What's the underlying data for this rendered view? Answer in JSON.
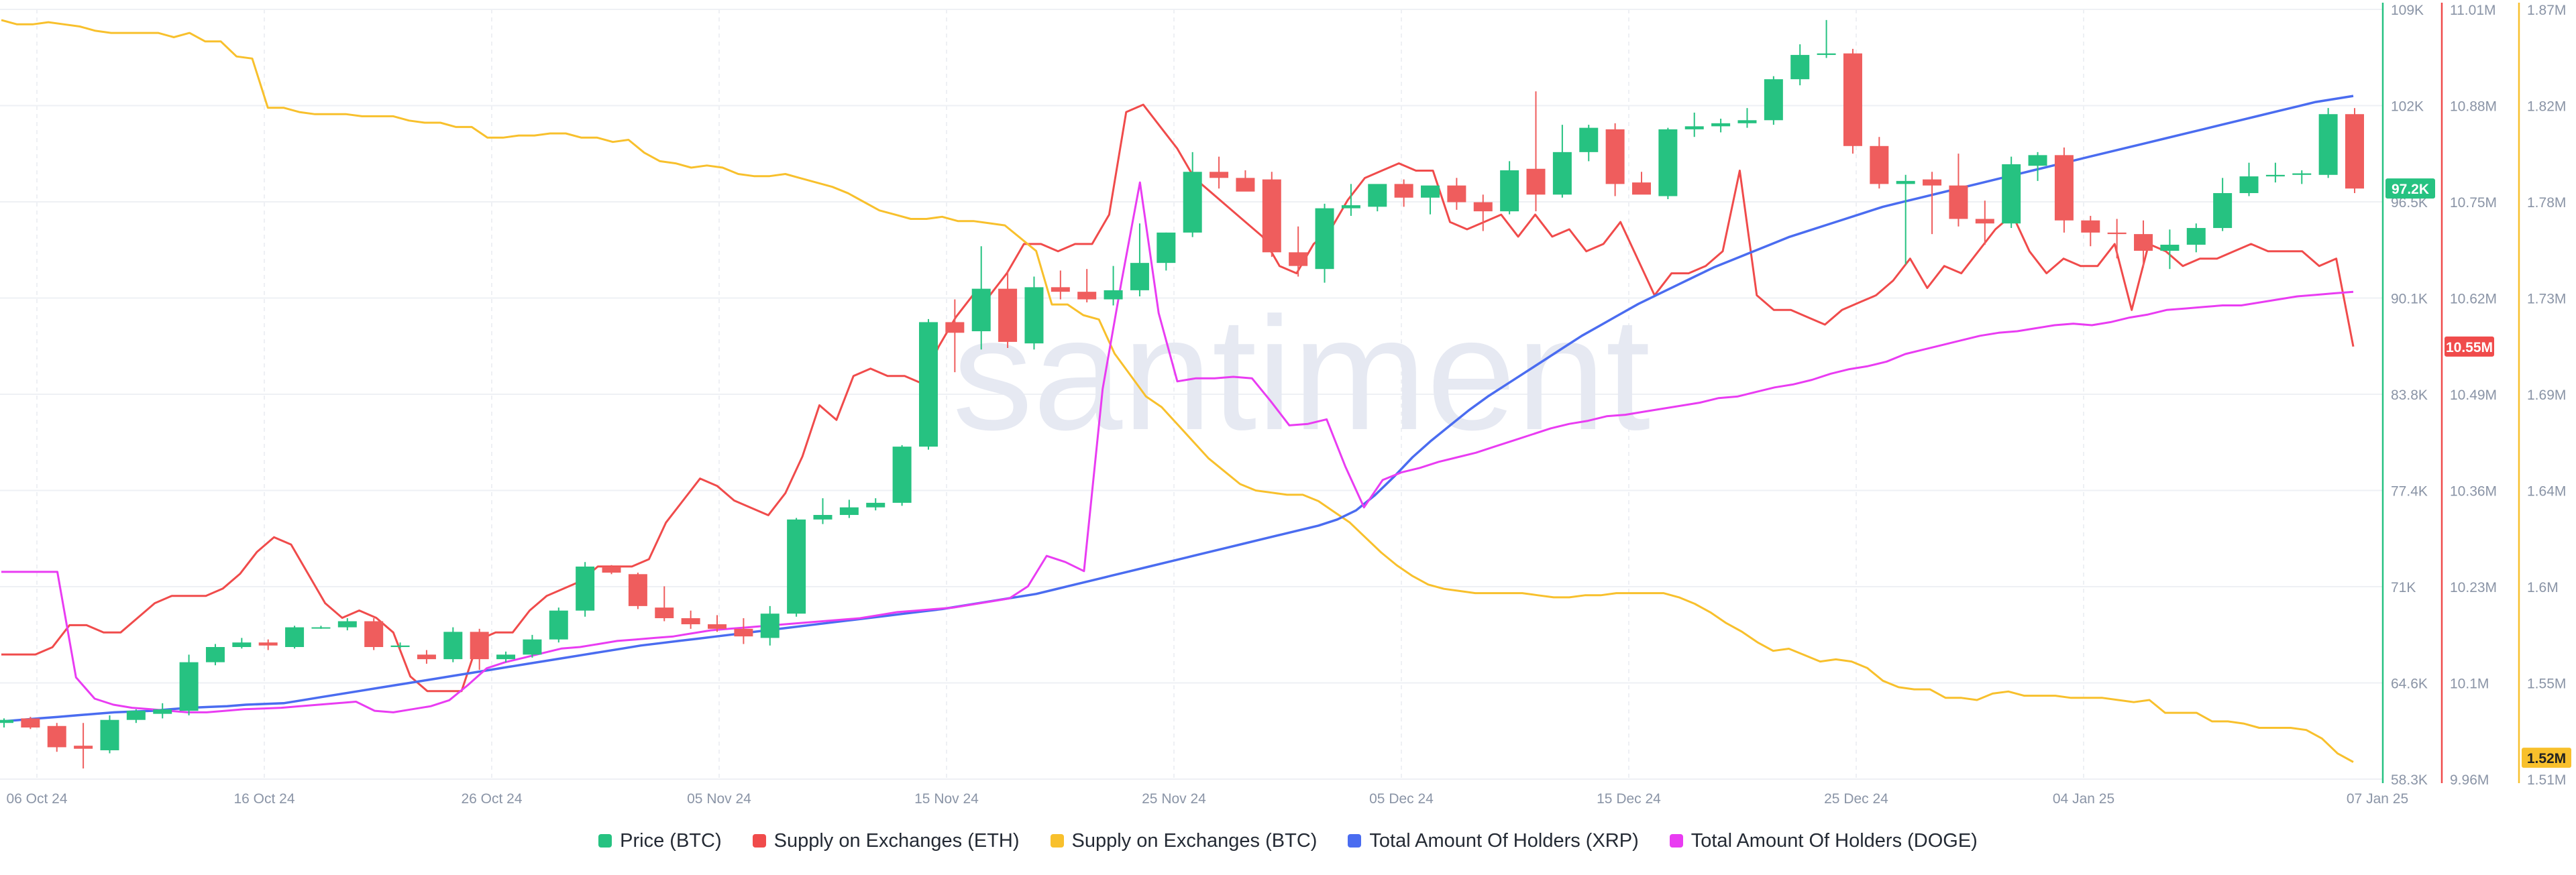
{
  "watermark": "santiment",
  "colors": {
    "up": "#26c281",
    "down": "#ef5d5d",
    "eth_supply": "#f04b4b",
    "btc_supply": "#f8c02c",
    "xrp_holders": "#4a6cf0",
    "doge_holders": "#e93cf2",
    "grid": "#eef0f4",
    "tick_text": "#8a94a6"
  },
  "chart_data": {
    "type": "line",
    "title": "",
    "x_ticks": [
      "06 Oct 24",
      "16 Oct 24",
      "26 Oct 24",
      "05 Nov 24",
      "15 Nov 24",
      "25 Nov 24",
      "05 Dec 24",
      "15 Dec 24",
      "25 Dec 24",
      "04 Jan 25",
      "07 Jan 25"
    ],
    "axes": [
      {
        "id": "btc_price",
        "ticks": [
          "109K",
          "102K",
          "96.5K",
          "90.1K",
          "83.8K",
          "77.4K",
          "71K",
          "64.6K",
          "58.3K"
        ],
        "ylim": [
          58300,
          109000
        ],
        "current_label": "97.2K",
        "color": "#26c281"
      },
      {
        "id": "eth_supply",
        "ticks": [
          "11.01M",
          "10.88M",
          "10.75M",
          "10.62M",
          "10.49M",
          "10.36M",
          "10.23M",
          "10.1M",
          "9.96M"
        ],
        "ylim": [
          9.96,
          11.01
        ],
        "current_label": "10.55M",
        "color": "#f04b4b"
      },
      {
        "id": "btc_supply",
        "ticks": [
          "1.87M",
          "1.82M",
          "1.78M",
          "1.73M",
          "1.69M",
          "1.64M",
          "1.6M",
          "1.55M",
          "1.51M"
        ],
        "ylim": [
          1.51,
          1.87
        ],
        "current_label": "1.52M",
        "color": "#f8c02c"
      }
    ],
    "candles": [
      [
        62000,
        62300,
        61700,
        62200
      ],
      [
        62300,
        62400,
        61600,
        61700
      ],
      [
        61800,
        62000,
        60100,
        60400
      ],
      [
        60500,
        62000,
        59000,
        60300
      ],
      [
        60200,
        62500,
        60000,
        62200
      ],
      [
        62200,
        62900,
        62000,
        62800
      ],
      [
        62600,
        63300,
        62300,
        62900
      ],
      [
        62800,
        66500,
        62500,
        66000
      ],
      [
        66000,
        67200,
        65800,
        67000
      ],
      [
        67000,
        67600,
        66900,
        67300
      ],
      [
        67300,
        67500,
        66800,
        67100
      ],
      [
        67000,
        68400,
        66900,
        68300
      ],
      [
        68300,
        68400,
        68200,
        68300
      ],
      [
        68300,
        68900,
        68100,
        68700
      ],
      [
        68700,
        68900,
        66800,
        67000
      ],
      [
        67000,
        67300,
        66900,
        67100
      ],
      [
        66500,
        66800,
        65900,
        66200
      ],
      [
        66200,
        68300,
        66000,
        68000
      ],
      [
        68000,
        68200,
        65500,
        66200
      ],
      [
        66200,
        66700,
        66000,
        66500
      ],
      [
        66500,
        67800,
        66300,
        67500
      ],
      [
        67500,
        69600,
        67300,
        69400
      ],
      [
        69400,
        72600,
        69000,
        72300
      ],
      [
        72300,
        72400,
        71800,
        71900
      ],
      [
        71800,
        71900,
        69500,
        69700
      ],
      [
        69600,
        71000,
        68700,
        68900
      ],
      [
        68900,
        69400,
        68200,
        68500
      ],
      [
        68500,
        69100,
        68000,
        68200
      ],
      [
        68200,
        68900,
        67200,
        67700
      ],
      [
        67600,
        69700,
        67100,
        69200
      ],
      [
        69200,
        75500,
        69000,
        75400
      ],
      [
        75400,
        76800,
        75100,
        75700
      ],
      [
        75700,
        76700,
        75500,
        76200
      ],
      [
        76200,
        76800,
        76000,
        76500
      ],
      [
        76500,
        80300,
        76300,
        80200
      ],
      [
        80200,
        88600,
        80000,
        88400
      ],
      [
        88400,
        89900,
        85100,
        87700
      ],
      [
        87800,
        93400,
        86600,
        90600
      ],
      [
        90600,
        91800,
        86700,
        87100
      ],
      [
        87000,
        91400,
        86600,
        90700
      ],
      [
        90700,
        91800,
        89900,
        90400
      ],
      [
        90400,
        91900,
        89700,
        89900
      ],
      [
        89900,
        92100,
        89500,
        90500
      ],
      [
        90500,
        94900,
        90100,
        92300
      ],
      [
        92300,
        94300,
        91800,
        94300
      ],
      [
        94300,
        99600,
        94000,
        98300
      ],
      [
        98300,
        99300,
        97200,
        97900
      ],
      [
        97900,
        98400,
        97100,
        97000
      ],
      [
        97800,
        98300,
        92700,
        93000
      ],
      [
        93000,
        94700,
        91400,
        92100
      ],
      [
        91900,
        96200,
        91000,
        95900
      ],
      [
        95900,
        97500,
        95400,
        96100
      ],
      [
        96000,
        97400,
        95700,
        97500
      ],
      [
        97500,
        97800,
        96000,
        96600
      ],
      [
        96600,
        97300,
        95500,
        97400
      ],
      [
        97400,
        97900,
        95800,
        96300
      ],
      [
        96300,
        96800,
        94400,
        95700
      ],
      [
        95700,
        99000,
        95500,
        98400
      ],
      [
        98500,
        103600,
        95700,
        96800
      ],
      [
        96800,
        101400,
        96600,
        99600
      ],
      [
        99600,
        101400,
        99000,
        101200
      ],
      [
        101100,
        101500,
        96700,
        97500
      ],
      [
        97600,
        98300,
        96900,
        96800
      ],
      [
        96700,
        101200,
        96500,
        101100
      ],
      [
        101100,
        102200,
        100600,
        101300
      ],
      [
        101300,
        101800,
        100900,
        101500
      ],
      [
        101500,
        102500,
        101200,
        101700
      ],
      [
        101700,
        104600,
        101400,
        104400
      ],
      [
        104400,
        106700,
        104000,
        106000
      ],
      [
        106000,
        108300,
        105800,
        106100
      ],
      [
        106100,
        106400,
        99500,
        100000
      ],
      [
        100000,
        100600,
        97200,
        97500
      ],
      [
        97500,
        98100,
        92200,
        97700
      ],
      [
        97800,
        98300,
        94200,
        97400
      ],
      [
        97400,
        99500,
        94700,
        95200
      ],
      [
        95200,
        96400,
        93500,
        94900
      ],
      [
        94900,
        99300,
        94600,
        98800
      ],
      [
        98700,
        99600,
        97700,
        99400
      ],
      [
        99400,
        99900,
        94300,
        95100
      ],
      [
        95100,
        95400,
        93400,
        94300
      ],
      [
        94300,
        95200,
        92600,
        94200
      ],
      [
        94200,
        95100,
        92000,
        93100
      ],
      [
        93100,
        94500,
        91900,
        93500
      ],
      [
        93500,
        94900,
        93000,
        94600
      ],
      [
        94600,
        97900,
        94400,
        96900
      ],
      [
        96900,
        98900,
        96700,
        98000
      ],
      [
        98000,
        98900,
        97600,
        98100
      ],
      [
        98100,
        98400,
        97500,
        98200
      ],
      [
        98100,
        102500,
        97900,
        102100
      ],
      [
        102100,
        102500,
        96900,
        97200
      ]
    ],
    "series": [
      {
        "name": "Price (BTC)",
        "axis": "btc_price"
      },
      {
        "name": "Supply on Exchanges (ETH)",
        "axis": "eth_supply",
        "values": [
          10.13,
          10.13,
          10.13,
          10.14,
          10.17,
          10.17,
          10.16,
          10.16,
          10.18,
          10.2,
          10.21,
          10.21,
          10.21,
          10.22,
          10.24,
          10.27,
          10.29,
          10.28,
          10.24,
          10.2,
          10.18,
          10.19,
          10.18,
          10.16,
          10.1,
          10.08,
          10.08,
          10.08,
          10.15,
          10.16,
          10.16,
          10.19,
          10.21,
          10.22,
          10.23,
          10.25,
          10.25,
          10.25,
          10.26,
          10.31,
          10.34,
          10.37,
          10.36,
          10.34,
          10.33,
          10.32,
          10.35,
          10.4,
          10.47,
          10.45,
          10.51,
          10.52,
          10.51,
          10.51,
          10.5,
          10.55,
          10.59,
          10.62,
          10.62,
          10.65,
          10.69,
          10.69,
          10.68,
          10.69,
          10.69,
          10.73,
          10.87,
          10.88,
          10.85,
          10.82,
          10.78,
          10.76,
          10.74,
          10.72,
          10.7,
          10.66,
          10.65,
          10.69,
          10.71,
          10.75,
          10.78,
          10.79,
          10.8,
          10.79,
          10.79,
          10.72,
          10.71,
          10.72,
          10.73,
          10.7,
          10.73,
          10.7,
          10.71,
          10.68,
          10.69,
          10.72,
          10.67,
          10.62,
          10.65,
          10.65,
          10.66,
          10.68,
          10.79,
          10.62,
          10.6,
          10.6,
          10.59,
          10.58,
          10.6,
          10.61,
          10.62,
          10.64,
          10.67,
          10.63,
          10.66,
          10.65,
          10.68,
          10.71,
          10.73,
          10.68,
          10.65,
          10.67,
          10.66,
          10.66,
          10.69,
          10.6,
          10.69,
          10.68,
          10.66,
          10.67,
          10.67,
          10.68,
          10.69,
          10.68,
          10.68,
          10.68,
          10.66,
          10.67,
          10.55
        ]
      },
      {
        "name": "Supply on Exchanges (BTC)",
        "axis": "btc_supply",
        "values": [
          1.865,
          1.863,
          1.863,
          1.864,
          1.863,
          1.862,
          1.86,
          1.859,
          1.859,
          1.859,
          1.859,
          1.857,
          1.859,
          1.855,
          1.855,
          1.848,
          1.847,
          1.824,
          1.824,
          1.822,
          1.821,
          1.821,
          1.821,
          1.82,
          1.82,
          1.82,
          1.818,
          1.817,
          1.817,
          1.815,
          1.815,
          1.81,
          1.81,
          1.811,
          1.811,
          1.812,
          1.812,
          1.81,
          1.81,
          1.808,
          1.809,
          1.803,
          1.799,
          1.798,
          1.796,
          1.797,
          1.796,
          1.793,
          1.792,
          1.792,
          1.793,
          1.791,
          1.789,
          1.787,
          1.784,
          1.78,
          1.776,
          1.774,
          1.772,
          1.772,
          1.773,
          1.771,
          1.771,
          1.77,
          1.769,
          1.763,
          1.757,
          1.732,
          1.732,
          1.727,
          1.725,
          1.709,
          1.699,
          1.689,
          1.684,
          1.676,
          1.668,
          1.66,
          1.654,
          1.648,
          1.645,
          1.644,
          1.643,
          1.643,
          1.64,
          1.635,
          1.63,
          1.623,
          1.616,
          1.61,
          1.605,
          1.601,
          1.599,
          1.598,
          1.597,
          1.597,
          1.597,
          1.597,
          1.596,
          1.595,
          1.595,
          1.596,
          1.596,
          1.597,
          1.597,
          1.597,
          1.597,
          1.595,
          1.592,
          1.588,
          1.583,
          1.579,
          1.574,
          1.57,
          1.571,
          1.568,
          1.565,
          1.566,
          1.565,
          1.562,
          1.556,
          1.553,
          1.552,
          1.552,
          1.548,
          1.548,
          1.547,
          1.55,
          1.551,
          1.549,
          1.549,
          1.549,
          1.548,
          1.548,
          1.548,
          1.547,
          1.546,
          1.547,
          1.541,
          1.541,
          1.541,
          1.537,
          1.537,
          1.536,
          1.534,
          1.534,
          1.534,
          1.533,
          1.529,
          1.522,
          1.518
        ]
      },
      {
        "name": "Total Amount Of Holders (XRP)",
        "axis": "btc_price",
        "scale_note": "",
        "values": [
          62100,
          62200,
          62300,
          62400,
          62500,
          62600,
          62700,
          62750,
          62800,
          62900,
          63000,
          63050,
          63100,
          63200,
          63250,
          63300,
          63500,
          63700,
          63900,
          64100,
          64300,
          64500,
          64700,
          64900,
          65100,
          65300,
          65500,
          65700,
          65900,
          66100,
          66300,
          66500,
          66700,
          66900,
          67100,
          67250,
          67400,
          67550,
          67700,
          67850,
          68000,
          68150,
          68300,
          68450,
          68600,
          68750,
          68900,
          69050,
          69200,
          69350,
          69500,
          69700,
          69900,
          70100,
          70300,
          70500,
          70800,
          71100,
          71400,
          71700,
          72000,
          72300,
          72600,
          72900,
          73200,
          73500,
          73800,
          74100,
          74400,
          74700,
          75000,
          75400,
          76000,
          77000,
          78200,
          79500,
          80600,
          81600,
          82600,
          83500,
          84300,
          85100,
          85900,
          86700,
          87500,
          88200,
          88900,
          89600,
          90200,
          90800,
          91400,
          92000,
          92500,
          93000,
          93500,
          94000,
          94400,
          94800,
          95200,
          95600,
          96000,
          96300,
          96600,
          96900,
          97200,
          97500,
          97800,
          98100,
          98400,
          98700,
          99000,
          99300,
          99600,
          99900,
          100200,
          100500,
          100800,
          101100,
          101400,
          101700,
          102000,
          102300,
          102600,
          102900,
          103100,
          103300
        ]
      },
      {
        "name": "Total Amount Of Holders (DOGE)",
        "axis": "btc_price",
        "values": [
          71950,
          71950,
          71950,
          71950,
          65000,
          63600,
          63200,
          63000,
          62900,
          62800,
          62700,
          62700,
          62800,
          62900,
          62950,
          63000,
          63100,
          63200,
          63300,
          63400,
          62800,
          62700,
          62900,
          63100,
          63500,
          64500,
          65600,
          66000,
          66300,
          66600,
          66900,
          67000,
          67200,
          67400,
          67500,
          67600,
          67700,
          67900,
          68100,
          68200,
          68300,
          68400,
          68500,
          68600,
          68700,
          68800,
          68900,
          69100,
          69300,
          69400,
          69500,
          69600,
          69800,
          70000,
          70200,
          71000,
          73000,
          72600,
          72000,
          84000,
          91000,
          97600,
          89000,
          84500,
          84700,
          84700,
          84800,
          84700,
          83200,
          81600,
          81700,
          82000,
          78900,
          76200,
          78000,
          78500,
          78800,
          79200,
          79500,
          79800,
          80200,
          80600,
          81000,
          81400,
          81700,
          81900,
          82200,
          82300,
          82500,
          82700,
          82900,
          83100,
          83400,
          83500,
          83800,
          84100,
          84300,
          84600,
          85000,
          85300,
          85500,
          85800,
          86300,
          86600,
          86900,
          87200,
          87500,
          87700,
          87800,
          88000,
          88200,
          88300,
          88200,
          88400,
          88700,
          88900,
          89200,
          89300,
          89400,
          89500,
          89500,
          89700,
          89900,
          90100,
          90200,
          90300,
          90400
        ]
      }
    ]
  },
  "legend": {
    "items": [
      {
        "label": "Price (BTC)",
        "color": "#26c281"
      },
      {
        "label": "Supply on Exchanges (ETH)",
        "color": "#f04b4b"
      },
      {
        "label": "Supply on Exchanges (BTC)",
        "color": "#f8c02c"
      },
      {
        "label": "Total Amount Of Holders (XRP)",
        "color": "#4a6cf0"
      },
      {
        "label": "Total Amount Of Holders (DOGE)",
        "color": "#e93cf2"
      }
    ]
  }
}
